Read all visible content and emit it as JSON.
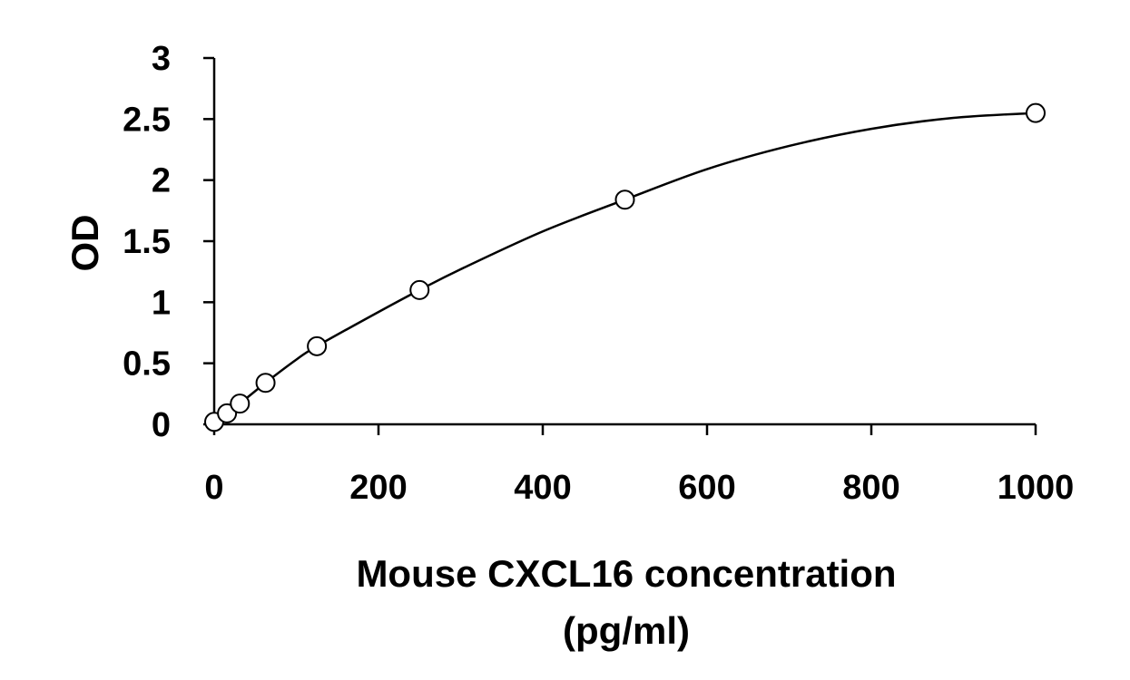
{
  "chart_data": {
    "type": "scatter",
    "title": "",
    "xlabel_line1": "Mouse CXCL16 concentration",
    "xlabel_line2": "(pg/ml)",
    "ylabel": "OD",
    "xlim": [
      0,
      1000
    ],
    "ylim": [
      0,
      3
    ],
    "x_ticks": [
      0,
      200,
      400,
      600,
      800,
      1000
    ],
    "y_ticks": [
      0,
      0.5,
      1,
      1.5,
      2,
      2.5,
      3
    ],
    "grid": false,
    "legend": "none",
    "series": [
      {
        "marker": "open-circle",
        "x": [
          0,
          15.6,
          31.25,
          62.5,
          125,
          250,
          500,
          1000
        ],
        "y": [
          0.02,
          0.09,
          0.17,
          0.34,
          0.64,
          1.1,
          1.84,
          2.55
        ]
      }
    ],
    "fit": {
      "type": "curve",
      "x": [
        0,
        15.6,
        31.25,
        62.5,
        100,
        125,
        200,
        250,
        300,
        400,
        500,
        600,
        700,
        800,
        900,
        1000
      ],
      "y": [
        0.02,
        0.09,
        0.17,
        0.34,
        0.53,
        0.64,
        0.92,
        1.1,
        1.27,
        1.58,
        1.84,
        2.09,
        2.28,
        2.42,
        2.51,
        2.55
      ]
    },
    "colors": {
      "axis": "#000000",
      "marker_stroke": "#000000",
      "marker_fill": "#ffffff",
      "curve": "#000000"
    }
  }
}
